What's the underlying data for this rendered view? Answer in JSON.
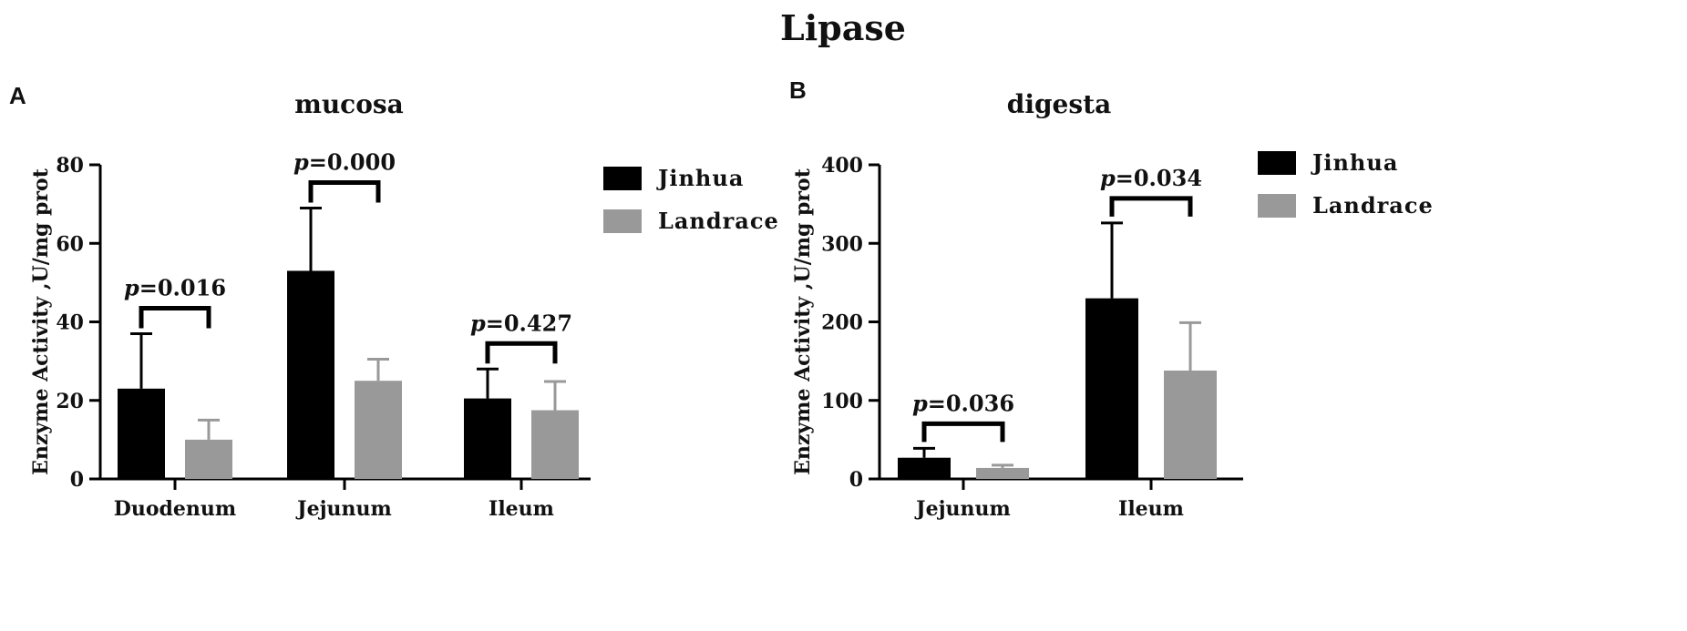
{
  "figure": {
    "title": "Lipase"
  },
  "chart_data": [
    {
      "panel_label": "A",
      "type": "bar",
      "title": "mucosa",
      "xlabel": "",
      "ylabel": "Enzyme Activity ,U/mg prot",
      "ylim": [
        0,
        80
      ],
      "yticks": [
        0,
        20,
        40,
        60,
        80
      ],
      "categories": [
        "Duodenum",
        "Jejunum",
        "Ileum"
      ],
      "series": [
        {
          "name": "Jinhua",
          "color": "#000000",
          "values": [
            23,
            53,
            20.5
          ],
          "errors": [
            14,
            16,
            7.5
          ]
        },
        {
          "name": "Landrace",
          "color": "#999999",
          "values": [
            10,
            25,
            17.5
          ],
          "errors": [
            5,
            5.5,
            7.3
          ]
        }
      ],
      "annotations": [
        "=0.016",
        "=0.000",
        "=0.427"
      ],
      "p_symbol": "p",
      "legend_position": "right",
      "grid": false
    },
    {
      "panel_label": "B",
      "type": "bar",
      "title": "digesta",
      "xlabel": "",
      "ylabel": "Enzyme Activity ,U/mg prot",
      "ylim": [
        0,
        400
      ],
      "yticks": [
        0,
        100,
        200,
        300,
        400
      ],
      "categories": [
        "Jejunum",
        "Ileum"
      ],
      "series": [
        {
          "name": "Jinhua",
          "color": "#000000",
          "values": [
            27,
            230
          ],
          "errors": [
            12,
            96
          ]
        },
        {
          "name": "Landrace",
          "color": "#999999",
          "values": [
            14,
            138
          ],
          "errors": [
            3.5,
            61
          ]
        }
      ],
      "annotations": [
        "=0.036",
        "=0.034"
      ],
      "p_symbol": "p",
      "legend_position": "right",
      "grid": false
    }
  ]
}
